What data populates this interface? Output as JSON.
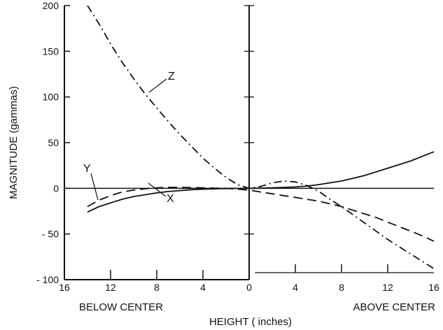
{
  "chart_data": {
    "type": "line",
    "xlabel": "HEIGHT ( inches)",
    "ylabel": "MAGNITUDE (gammas)",
    "x_region_labels": {
      "left": "BELOW CENTER",
      "right": "ABOVE CENTER"
    },
    "xlim": [
      -16,
      16
    ],
    "ylim": [
      -100,
      200
    ],
    "x_ticks": [
      -16,
      -12,
      -8,
      -4,
      0,
      4,
      8,
      12,
      16
    ],
    "x_tick_labels": [
      "16",
      "12",
      "8",
      "4",
      "0",
      "4",
      "8",
      "12",
      "16"
    ],
    "y_ticks": [
      -100,
      -50,
      0,
      50,
      100,
      150,
      200
    ],
    "y_tick_labels": [
      "- 100",
      "- 50",
      "0",
      "50",
      "100",
      "150",
      "200"
    ],
    "grid": false,
    "series": [
      {
        "name": "X",
        "style": "solid",
        "x": [
          -14,
          -13,
          -12,
          -11,
          -10,
          -9,
          -8,
          -7,
          -6,
          -5,
          -4,
          -3,
          -2,
          -1,
          0,
          1,
          2,
          3,
          4,
          5,
          6,
          7,
          8,
          9,
          10,
          11,
          12,
          13,
          14,
          15,
          16
        ],
        "y": [
          -26,
          -20,
          -16,
          -12,
          -9,
          -7,
          -5,
          -3.5,
          -2.5,
          -1.5,
          -1,
          -0.6,
          -0.3,
          -0.1,
          0,
          0.2,
          0.5,
          1,
          1.5,
          2.5,
          4,
          6,
          8,
          11,
          14,
          18,
          22,
          26,
          30,
          35,
          40
        ]
      },
      {
        "name": "Y",
        "style": "dashed",
        "x": [
          -14,
          -13,
          -12,
          -11,
          -10,
          -9,
          -8,
          -7,
          -6,
          -5,
          -4,
          -3,
          -2,
          -1,
          0,
          1,
          2,
          3,
          4,
          5,
          6,
          7,
          8,
          9,
          10,
          11,
          12,
          13,
          14,
          15,
          16
        ],
        "y": [
          -20,
          -13,
          -8,
          -4,
          -2,
          -0.5,
          0.5,
          1,
          1,
          0.8,
          0.5,
          0.2,
          0,
          -1,
          -2,
          -4,
          -6,
          -8,
          -10,
          -12,
          -14,
          -17,
          -20,
          -24,
          -28,
          -32,
          -37,
          -42,
          -47,
          -52,
          -58
        ]
      },
      {
        "name": "Z",
        "style": "dash-dot",
        "x": [
          -14,
          -13,
          -12,
          -11,
          -10,
          -9,
          -8,
          -7,
          -6,
          -5,
          -4,
          -3,
          -2,
          -1,
          0,
          1,
          2,
          3,
          4,
          5,
          6,
          7,
          8,
          9,
          10,
          11,
          12,
          13,
          14,
          15,
          16
        ],
        "y": [
          200,
          180,
          158,
          138,
          120,
          103,
          88,
          73,
          59,
          46,
          33,
          22,
          12,
          4,
          0,
          2,
          6,
          8,
          7,
          3,
          -3,
          -12,
          -20,
          -29,
          -38,
          -47,
          -56,
          -64,
          -72,
          -80,
          -88
        ]
      }
    ]
  }
}
